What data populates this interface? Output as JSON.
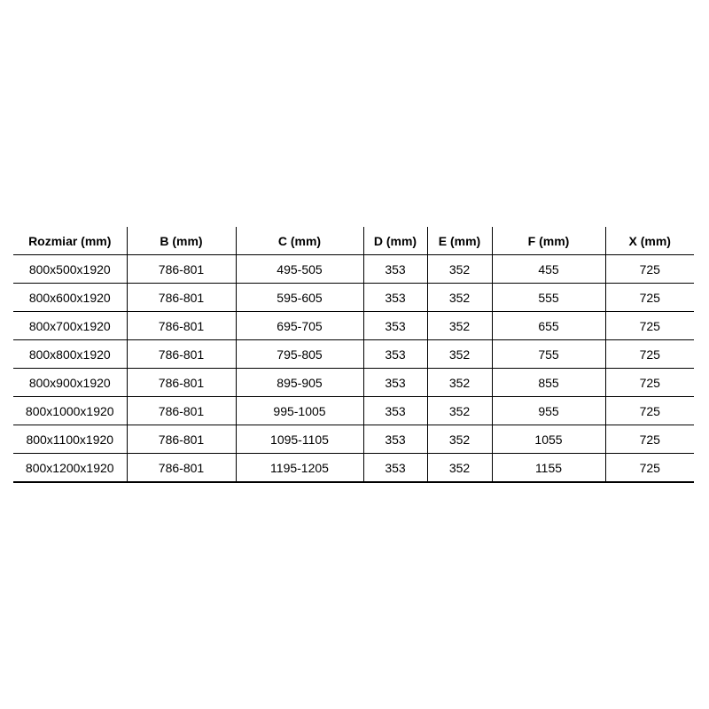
{
  "table": {
    "headers": [
      "Rozmiar (mm)",
      "B (mm)",
      "C (mm)",
      "D (mm)",
      "E (mm)",
      "F (mm)",
      "X (mm)"
    ],
    "rows": [
      [
        "800x500x1920",
        "786-801",
        "495-505",
        "353",
        "352",
        "455",
        "725"
      ],
      [
        "800x600x1920",
        "786-801",
        "595-605",
        "353",
        "352",
        "555",
        "725"
      ],
      [
        "800x700x1920",
        "786-801",
        "695-705",
        "353",
        "352",
        "655",
        "725"
      ],
      [
        "800x800x1920",
        "786-801",
        "795-805",
        "353",
        "352",
        "755",
        "725"
      ],
      [
        "800x900x1920",
        "786-801",
        "895-905",
        "353",
        "352",
        "855",
        "725"
      ],
      [
        "800x1000x1920",
        "786-801",
        "995-1005",
        "353",
        "352",
        "955",
        "725"
      ],
      [
        "800x1100x1920",
        "786-801",
        "1095-1105",
        "353",
        "352",
        "1055",
        "725"
      ],
      [
        "800x1200x1920",
        "786-801",
        "1195-1205",
        "353",
        "352",
        "1155",
        "725"
      ]
    ]
  }
}
